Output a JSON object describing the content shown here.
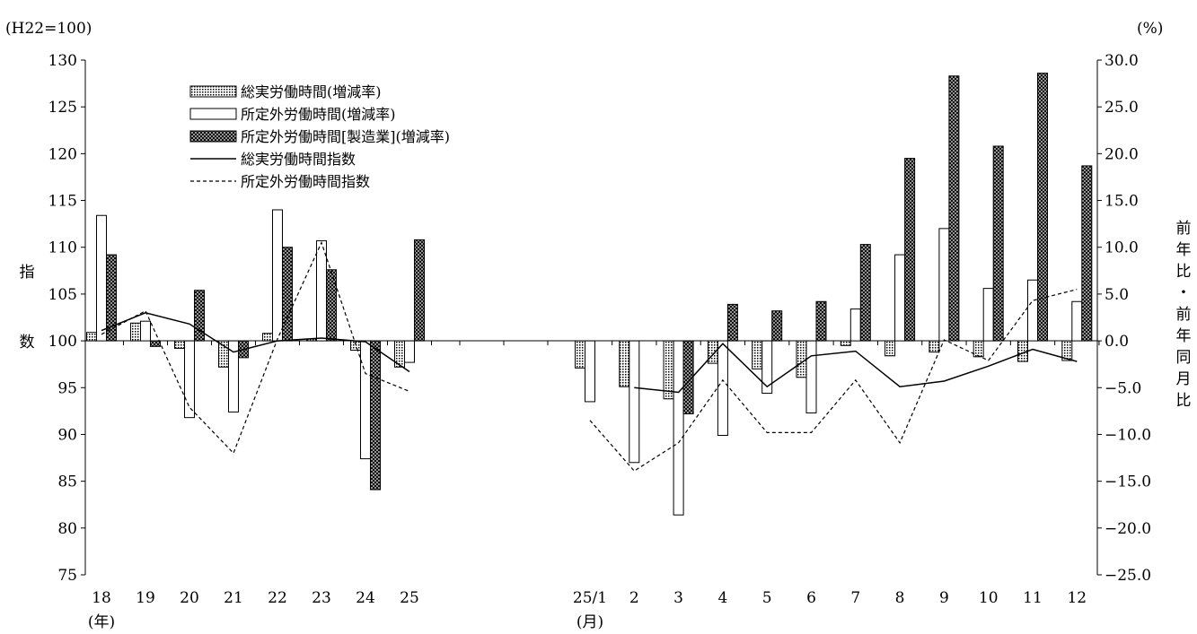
{
  "chart_data": {
    "type": "bar",
    "left_unit_label": "(H22=100)",
    "right_unit_label": "(%)",
    "left_axis_title": "指数",
    "right_axis_title": "前年比・前年同月比",
    "left_axis": {
      "min": 75,
      "max": 130,
      "step": 5,
      "ticks": [
        "75",
        "80",
        "85",
        "90",
        "95",
        "100",
        "105",
        "110",
        "115",
        "120",
        "125",
        "130"
      ]
    },
    "right_axis": {
      "min": -25.0,
      "max": 30.0,
      "step": 5,
      "ticks": [
        "−25.0",
        "−20.0",
        "−15.0",
        "−10.0",
        "−5.0",
        "0.0",
        "5.0",
        "10.0",
        "15.0",
        "20.0",
        "25.0",
        "30.0"
      ]
    },
    "grid": false,
    "legend_position": "top-left",
    "categories": [
      "18",
      "19",
      "20",
      "21",
      "22",
      "23",
      "24",
      "25",
      "25/1",
      "2",
      "3",
      "4",
      "5",
      "6",
      "7",
      "8",
      "9",
      "10",
      "11",
      "12"
    ],
    "groups": [
      {
        "unit_label": "(年)",
        "start": 0,
        "count": 8
      },
      {
        "unit_label": "(月)",
        "start": 8,
        "count": 12
      }
    ],
    "series": [
      {
        "name": "総実労働時間(増減率)",
        "kind": "bar",
        "axis": "right",
        "pattern": "dots",
        "values": [
          0.9,
          1.9,
          -0.8,
          -2.8,
          0.8,
          0.2,
          -1.0,
          -2.8,
          -2.9,
          -4.9,
          -6.2,
          -2.4,
          -3.0,
          -3.9,
          -0.5,
          -1.6,
          -1.2,
          -1.7,
          -2.2,
          -2.1
        ]
      },
      {
        "name": "所定外労働時間(増減率)",
        "kind": "bar",
        "axis": "right",
        "pattern": "white",
        "values": [
          13.4,
          2.1,
          -8.2,
          -7.6,
          14.0,
          10.7,
          -12.6,
          -2.3,
          -6.5,
          -13.0,
          -18.6,
          -10.1,
          -5.6,
          -7.7,
          3.4,
          9.2,
          12.0,
          5.6,
          6.5,
          4.2
        ]
      },
      {
        "name": "所定外労働時間[製造業](増減率)",
        "kind": "bar",
        "axis": "right",
        "pattern": "crosshatch",
        "values": [
          9.2,
          -0.6,
          5.4,
          -1.8,
          10.0,
          7.6,
          -15.9,
          10.8,
          null,
          null,
          -7.8,
          3.9,
          3.2,
          4.2,
          10.3,
          19.5,
          28.3,
          20.8,
          28.6,
          18.7
        ]
      },
      {
        "name": "総実労働時間指数",
        "kind": "line",
        "axis": "left",
        "dash": "solid",
        "values": [
          101.1,
          103.0,
          101.8,
          98.8,
          100.0,
          100.3,
          99.9,
          96.7,
          null,
          95.0,
          94.5,
          99.7,
          95.1,
          98.4,
          98.9,
          95.1,
          95.7,
          97.3,
          99.1,
          97.8
        ]
      },
      {
        "name": "所定外労働時間指数",
        "kind": "line",
        "axis": "left",
        "dash": "dashed",
        "values": [
          100.7,
          103.2,
          92.9,
          88.0,
          100.2,
          110.5,
          96.5,
          94.6,
          91.5,
          86.1,
          89.1,
          95.8,
          90.2,
          90.2,
          95.8,
          89.1,
          100.1,
          97.9,
          104.3,
          105.5
        ]
      }
    ]
  }
}
